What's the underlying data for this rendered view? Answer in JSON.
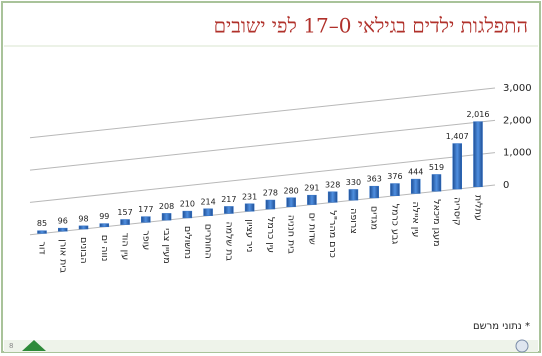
{
  "page_number": "8",
  "chart_data": {
    "type": "bar",
    "title": "התפלגות ילדים בגילאי 0–17 לפי ישובים",
    "footnote": "* נתוני מרשם",
    "categories": [
      "דור",
      "בית אורן",
      "הבונים",
      "נווה ים",
      "עין הוד",
      "עופר",
      "מעיין צבי",
      "נחשולים",
      "החותרים",
      "בת שלמה",
      "ניר עציון",
      "עין כרמל",
      "בית חנניה",
      "שדות ים",
      "כרם מהר\"ל",
      "צרופה",
      "מגדים",
      "גבע כרמל",
      "עין איילה",
      "מעגן מיכאל",
      "קיסריה",
      "עתלית"
    ],
    "values": [
      85,
      96,
      98,
      99,
      157,
      177,
      208,
      210,
      214,
      217,
      231,
      278,
      280,
      291,
      328,
      330,
      363,
      376,
      444,
      519,
      1407,
      2016
    ],
    "value_labels": [
      "85",
      "96",
      "98",
      "99",
      "157",
      "177",
      "208",
      "210",
      "214",
      "217",
      "231",
      "278",
      "280",
      "291",
      "328",
      "330",
      "363",
      "376",
      "444",
      "519",
      "1,407",
      "2,016"
    ],
    "color": "#2f6fc4",
    "ylim": [
      0,
      3000
    ],
    "yticks": [
      0,
      {
        "value": 1000,
        "label": "1,000"
      },
      {
        "value": 2000,
        "label": "2,000"
      },
      {
        "value": 3000,
        "label": "3,000"
      }
    ],
    "grid": true
  }
}
